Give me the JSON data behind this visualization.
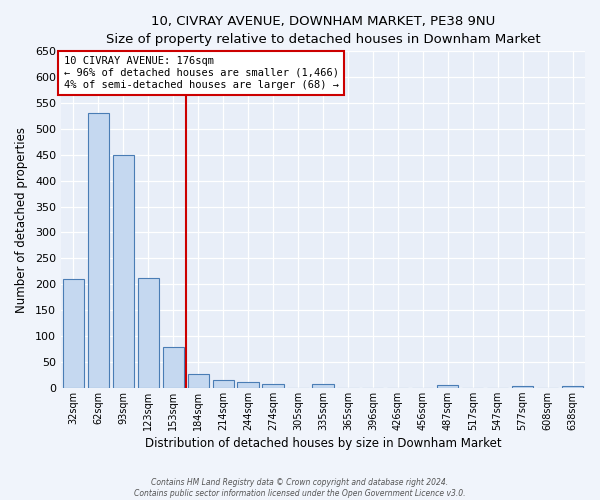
{
  "title": "10, CIVRAY AVENUE, DOWNHAM MARKET, PE38 9NU",
  "subtitle": "Size of property relative to detached houses in Downham Market",
  "xlabel": "Distribution of detached houses by size in Downham Market",
  "ylabel": "Number of detached properties",
  "bar_labels": [
    "32sqm",
    "62sqm",
    "93sqm",
    "123sqm",
    "153sqm",
    "184sqm",
    "214sqm",
    "244sqm",
    "274sqm",
    "305sqm",
    "335sqm",
    "365sqm",
    "396sqm",
    "426sqm",
    "456sqm",
    "487sqm",
    "517sqm",
    "547sqm",
    "577sqm",
    "608sqm",
    "638sqm"
  ],
  "bar_values": [
    210,
    530,
    450,
    213,
    78,
    27,
    15,
    12,
    7,
    0,
    7,
    0,
    0,
    0,
    0,
    5,
    0,
    0,
    4,
    0,
    4
  ],
  "bar_color": "#c5d8f0",
  "bar_edge_color": "#4a7db5",
  "vline_color": "#cc0000",
  "annotation_title": "10 CIVRAY AVENUE: 176sqm",
  "annotation_line1": "← 96% of detached houses are smaller (1,466)",
  "annotation_line2": "4% of semi-detached houses are larger (68) →",
  "annotation_box_color": "#ffffff",
  "annotation_box_edge": "#cc0000",
  "ylim": [
    0,
    650
  ],
  "yticks": [
    0,
    50,
    100,
    150,
    200,
    250,
    300,
    350,
    400,
    450,
    500,
    550,
    600,
    650
  ],
  "plot_bg": "#e8eef8",
  "fig_bg": "#f0f4fb",
  "footer1": "Contains HM Land Registry data © Crown copyright and database right 2024.",
  "footer2": "Contains public sector information licensed under the Open Government Licence v3.0."
}
